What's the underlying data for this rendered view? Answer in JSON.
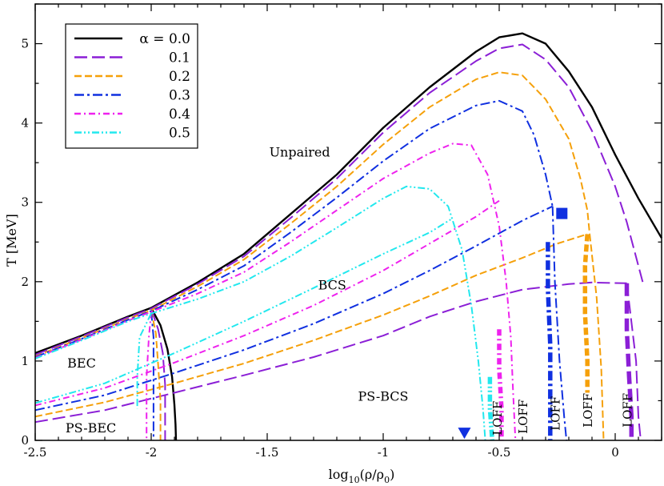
{
  "chart_data": {
    "type": "line",
    "xlabel_parts": {
      "pre": "log",
      "sub1": "10",
      "mid": "(ρ/ρ",
      "sub2": "0",
      "post": ")"
    },
    "ylabel": "T [MeV]",
    "xlim": [
      -2.5,
      0.2
    ],
    "ylim": [
      0,
      5.5
    ],
    "x_ticks": [
      -2.5,
      -2,
      -1.5,
      -1,
      -0.5,
      0
    ],
    "x_tick_labels": [
      "-2.5",
      "-2",
      "-1.5",
      "-1",
      "-0.5",
      "0"
    ],
    "y_ticks": [
      0,
      1,
      2,
      3,
      4,
      5
    ],
    "y_tick_labels": [
      "0",
      "1",
      "2",
      "3",
      "4",
      "5"
    ],
    "legend": {
      "placement": "top-left",
      "entries": [
        {
          "label": "α = 0.0",
          "color": "#000000",
          "dash": "solid"
        },
        {
          "label": "0.1",
          "color": "#8b1fd6",
          "dash": "long-dash"
        },
        {
          "label": "0.2",
          "color": "#f5a00a",
          "dash": "dash"
        },
        {
          "label": "0.3",
          "color": "#1030e0",
          "dash": "dash-dot"
        },
        {
          "label": "0.4",
          "color": "#ee22ee",
          "dash": "short-dash-dot"
        },
        {
          "label": "0.5",
          "color": "#22e8ee",
          "dash": "dash-dot-dot"
        }
      ]
    },
    "region_labels": [
      {
        "text": "Unpaired",
        "x": -1.36,
        "y": 3.58
      },
      {
        "text": "BCS",
        "x": -1.22,
        "y": 1.9
      },
      {
        "text": "BEC",
        "x": -2.3,
        "y": 0.92
      },
      {
        "text": "PS-BCS",
        "x": -1.0,
        "y": 0.5
      },
      {
        "text": "PS-BEC",
        "x": -2.26,
        "y": 0.1
      }
    ],
    "loff_labels": [
      {
        "text": "LOFF",
        "x": -0.49,
        "y": 0.28
      },
      {
        "text": "LOFF",
        "x": -0.38,
        "y": 0.3
      },
      {
        "text": "LOFF",
        "x": -0.24,
        "y": 0.34
      },
      {
        "text": "LOFF",
        "x": -0.1,
        "y": 0.38
      },
      {
        "text": "LOFF",
        "x": 0.07,
        "y": 0.38
      }
    ],
    "markers": [
      {
        "shape": "square",
        "x": -0.23,
        "y": 2.86,
        "color": "#1030e0"
      },
      {
        "shape": "triangle-down",
        "x": -0.65,
        "y": 0.09,
        "color": "#1030e0"
      }
    ],
    "series": [
      {
        "name": "α = 0.0",
        "color": "#000000",
        "upper": [
          [
            -2.5,
            1.1
          ],
          [
            -2.3,
            1.32
          ],
          [
            -2.1,
            1.56
          ],
          [
            -2.0,
            1.67
          ],
          [
            -1.8,
            1.99
          ],
          [
            -1.6,
            2.35
          ],
          [
            -1.4,
            2.85
          ],
          [
            -1.2,
            3.35
          ],
          [
            -1.0,
            3.94
          ],
          [
            -0.8,
            4.45
          ],
          [
            -0.6,
            4.9
          ],
          [
            -0.5,
            5.08
          ],
          [
            -0.4,
            5.13
          ],
          [
            -0.3,
            5.0
          ],
          [
            -0.2,
            4.65
          ],
          [
            -0.1,
            4.2
          ],
          [
            0.0,
            3.6
          ],
          [
            0.1,
            3.05
          ],
          [
            0.2,
            2.55
          ]
        ],
        "inner": [
          [
            -2.0,
            1.67
          ],
          [
            -1.96,
            1.45
          ],
          [
            -1.93,
            1.15
          ],
          [
            -1.91,
            0.8
          ],
          [
            -1.9,
            0.45
          ],
          [
            -1.895,
            0.2
          ],
          [
            -1.893,
            0.0
          ]
        ]
      },
      {
        "name": "0.1",
        "color": "#8b1fd6",
        "upper": [
          [
            -2.5,
            1.08
          ],
          [
            -2.3,
            1.31
          ],
          [
            -2.1,
            1.55
          ],
          [
            -2.0,
            1.66
          ],
          [
            -1.8,
            1.97
          ],
          [
            -1.6,
            2.32
          ],
          [
            -1.4,
            2.8
          ],
          [
            -1.2,
            3.3
          ],
          [
            -1.0,
            3.88
          ],
          [
            -0.8,
            4.38
          ],
          [
            -0.6,
            4.78
          ],
          [
            -0.5,
            4.94
          ],
          [
            -0.4,
            4.99
          ],
          [
            -0.3,
            4.8
          ],
          [
            -0.2,
            4.45
          ],
          [
            -0.1,
            3.9
          ],
          [
            0.0,
            3.2
          ],
          [
            0.05,
            2.75
          ],
          [
            0.1,
            2.2
          ],
          [
            0.12,
            1.98
          ]
        ],
        "inner": [
          [
            -2.0,
            1.66
          ],
          [
            -1.97,
            1.4
          ],
          [
            -1.95,
            1.1
          ],
          [
            -1.94,
            0.7
          ],
          [
            -1.94,
            0.3
          ],
          [
            -1.94,
            0.0
          ]
        ],
        "lower": [
          [
            -2.5,
            0.23
          ],
          [
            -2.2,
            0.38
          ],
          [
            -1.9,
            0.6
          ],
          [
            -1.6,
            0.82
          ],
          [
            -1.3,
            1.05
          ],
          [
            -1.0,
            1.32
          ],
          [
            -0.8,
            1.56
          ],
          [
            -0.6,
            1.75
          ],
          [
            -0.4,
            1.9
          ],
          [
            -0.2,
            1.97
          ],
          [
            -0.1,
            1.99
          ],
          [
            0.05,
            1.98
          ]
        ],
        "loff_line": [
          [
            0.05,
            1.98
          ],
          [
            0.05,
            1.4
          ],
          [
            0.06,
            0.8
          ],
          [
            0.07,
            0.3
          ],
          [
            0.07,
            0.0
          ]
        ],
        "tail": [
          [
            0.05,
            1.98
          ],
          [
            0.09,
            1.0
          ],
          [
            0.1,
            0.3
          ],
          [
            0.11,
            0.0
          ]
        ]
      },
      {
        "name": "0.2",
        "color": "#f5a00a",
        "upper": [
          [
            -2.5,
            1.06
          ],
          [
            -2.3,
            1.29
          ],
          [
            -2.1,
            1.53
          ],
          [
            -2.0,
            1.64
          ],
          [
            -1.8,
            1.94
          ],
          [
            -1.6,
            2.28
          ],
          [
            -1.4,
            2.73
          ],
          [
            -1.2,
            3.2
          ],
          [
            -1.0,
            3.73
          ],
          [
            -0.8,
            4.2
          ],
          [
            -0.6,
            4.55
          ],
          [
            -0.5,
            4.64
          ],
          [
            -0.4,
            4.6
          ],
          [
            -0.3,
            4.3
          ],
          [
            -0.2,
            3.8
          ],
          [
            -0.15,
            3.3
          ],
          [
            -0.12,
            2.9
          ],
          [
            -0.11,
            2.6
          ]
        ],
        "inner": [
          [
            -2.0,
            1.64
          ],
          [
            -1.98,
            1.35
          ],
          [
            -1.97,
            0.95
          ],
          [
            -1.96,
            0.5
          ],
          [
            -1.96,
            0.0
          ]
        ],
        "lower": [
          [
            -2.5,
            0.3
          ],
          [
            -2.2,
            0.48
          ],
          [
            -1.9,
            0.72
          ],
          [
            -1.6,
            0.97
          ],
          [
            -1.3,
            1.26
          ],
          [
            -1.0,
            1.58
          ],
          [
            -0.8,
            1.82
          ],
          [
            -0.6,
            2.08
          ],
          [
            -0.4,
            2.3
          ],
          [
            -0.25,
            2.48
          ],
          [
            -0.12,
            2.6
          ]
        ],
        "loff_line": [
          [
            -0.12,
            2.6
          ],
          [
            -0.13,
            2.2
          ],
          [
            -0.13,
            1.6
          ],
          [
            -0.12,
            1.0
          ],
          [
            -0.12,
            0.6
          ]
        ],
        "tail": [
          [
            -0.11,
            2.6
          ],
          [
            -0.08,
            1.8
          ],
          [
            -0.06,
            0.9
          ],
          [
            -0.05,
            0.0
          ]
        ]
      },
      {
        "name": "0.3",
        "color": "#1030e0",
        "upper": [
          [
            -2.5,
            1.05
          ],
          [
            -2.3,
            1.28
          ],
          [
            -2.1,
            1.52
          ],
          [
            -2.0,
            1.63
          ],
          [
            -1.8,
            1.9
          ],
          [
            -1.6,
            2.2
          ],
          [
            -1.4,
            2.62
          ],
          [
            -1.2,
            3.06
          ],
          [
            -1.0,
            3.52
          ],
          [
            -0.8,
            3.93
          ],
          [
            -0.6,
            4.22
          ],
          [
            -0.5,
            4.28
          ],
          [
            -0.4,
            4.15
          ],
          [
            -0.35,
            3.85
          ],
          [
            -0.3,
            3.35
          ],
          [
            -0.27,
            2.95
          ]
        ],
        "inner": [
          [
            -2.0,
            1.63
          ],
          [
            -1.99,
            1.3
          ],
          [
            -1.99,
            0.8
          ],
          [
            -1.99,
            0.0
          ]
        ],
        "lower": [
          [
            -2.5,
            0.38
          ],
          [
            -2.2,
            0.57
          ],
          [
            -1.9,
            0.85
          ],
          [
            -1.6,
            1.14
          ],
          [
            -1.3,
            1.47
          ],
          [
            -1.0,
            1.85
          ],
          [
            -0.8,
            2.14
          ],
          [
            -0.6,
            2.45
          ],
          [
            -0.4,
            2.77
          ],
          [
            -0.27,
            2.95
          ]
        ],
        "loff_line": [
          [
            -0.29,
            2.5
          ],
          [
            -0.29,
            1.9
          ],
          [
            -0.28,
            1.2
          ],
          [
            -0.28,
            0.6
          ],
          [
            -0.28,
            0.0
          ]
        ],
        "tail": [
          [
            -0.27,
            2.95
          ],
          [
            -0.26,
            2.0
          ],
          [
            -0.24,
            1.0
          ],
          [
            -0.22,
            0.3
          ],
          [
            -0.21,
            0.0
          ]
        ]
      },
      {
        "name": "0.4",
        "color": "#ee22ee",
        "upper": [
          [
            -2.5,
            1.04
          ],
          [
            -2.3,
            1.27
          ],
          [
            -2.1,
            1.51
          ],
          [
            -2.0,
            1.62
          ],
          [
            -1.8,
            1.85
          ],
          [
            -1.6,
            2.12
          ],
          [
            -1.4,
            2.5
          ],
          [
            -1.2,
            2.9
          ],
          [
            -1.0,
            3.3
          ],
          [
            -0.8,
            3.62
          ],
          [
            -0.7,
            3.74
          ],
          [
            -0.62,
            3.72
          ],
          [
            -0.55,
            3.35
          ],
          [
            -0.5,
            2.7
          ],
          [
            -0.47,
            2.0
          ],
          [
            -0.45,
            1.3
          ],
          [
            -0.44,
            0.6
          ],
          [
            -0.43,
            0.0
          ]
        ],
        "inner": [
          [
            -2.0,
            1.62
          ],
          [
            -2.01,
            1.3
          ],
          [
            -2.02,
            0.8
          ],
          [
            -2.02,
            0.0
          ]
        ],
        "lower": [
          [
            -2.5,
            0.44
          ],
          [
            -2.2,
            0.66
          ],
          [
            -1.9,
            0.98
          ],
          [
            -1.6,
            1.32
          ],
          [
            -1.3,
            1.7
          ],
          [
            -1.0,
            2.14
          ],
          [
            -0.8,
            2.48
          ],
          [
            -0.6,
            2.82
          ],
          [
            -0.5,
            3.02
          ]
        ],
        "loff_line": [
          [
            -0.5,
            1.4
          ],
          [
            -0.5,
            0.9
          ],
          [
            -0.49,
            0.4
          ],
          [
            -0.49,
            0.0
          ]
        ]
      },
      {
        "name": "0.5",
        "color": "#22e8ee",
        "upper": [
          [
            -2.5,
            1.03
          ],
          [
            -2.3,
            1.26
          ],
          [
            -2.1,
            1.5
          ],
          [
            -2.0,
            1.6
          ],
          [
            -1.8,
            1.78
          ],
          [
            -1.6,
            2.0
          ],
          [
            -1.4,
            2.32
          ],
          [
            -1.2,
            2.68
          ],
          [
            -1.0,
            3.05
          ],
          [
            -0.9,
            3.2
          ],
          [
            -0.8,
            3.17
          ],
          [
            -0.72,
            2.95
          ],
          [
            -0.66,
            2.4
          ],
          [
            -0.62,
            1.7
          ],
          [
            -0.59,
            1.0
          ],
          [
            -0.57,
            0.4
          ],
          [
            -0.56,
            0.0
          ]
        ],
        "inner": [
          [
            -2.0,
            1.6
          ],
          [
            -2.05,
            1.3
          ],
          [
            -2.06,
            0.8
          ],
          [
            -2.06,
            0.4
          ]
        ],
        "lower": [
          [
            -2.5,
            0.47
          ],
          [
            -2.2,
            0.72
          ],
          [
            -1.9,
            1.1
          ],
          [
            -1.6,
            1.5
          ],
          [
            -1.3,
            1.92
          ],
          [
            -1.0,
            2.35
          ],
          [
            -0.8,
            2.62
          ],
          [
            -0.7,
            2.8
          ]
        ],
        "loff_line": [
          [
            -0.54,
            0.8
          ],
          [
            -0.54,
            0.4
          ],
          [
            -0.53,
            0.0
          ]
        ]
      }
    ]
  }
}
